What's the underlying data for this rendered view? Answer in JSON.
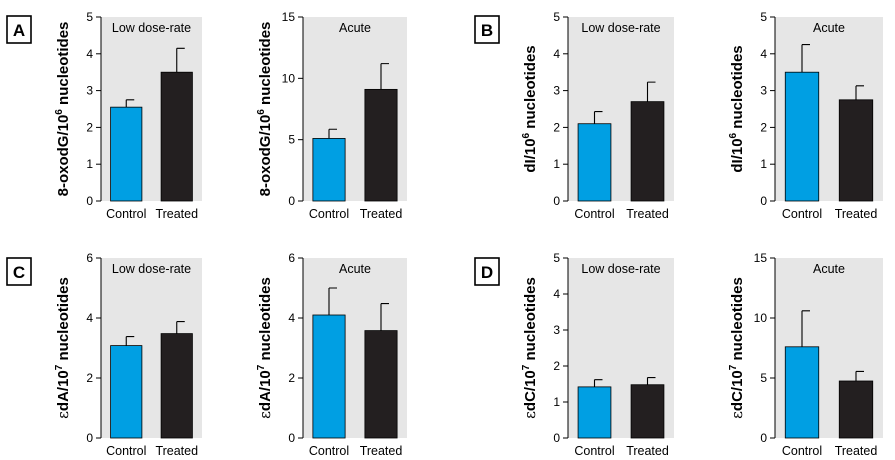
{
  "colors": {
    "control": "#009fe3",
    "treated": "#231f20",
    "plot_background": "#e6e6e6"
  },
  "panels": [
    {
      "letter": "A"
    },
    {
      "letter": "B"
    },
    {
      "letter": "C"
    },
    {
      "letter": "D"
    }
  ],
  "chart_data": [
    {
      "type": "bar",
      "panel": "A",
      "title": "Low dose-rate",
      "ylabel": {
        "main": "8-oxodG/10",
        "sup": "6",
        "rest": " nucleotides"
      },
      "categories": [
        "Control",
        "Treated"
      ],
      "values": [
        2.55,
        3.5
      ],
      "errors": [
        0.2,
        0.65
      ],
      "ylim": [
        0,
        5
      ],
      "yticks": [
        0,
        1,
        2,
        3,
        4,
        5
      ]
    },
    {
      "type": "bar",
      "panel": "A",
      "title": "Acute",
      "ylabel": {
        "main": "8-oxodG/10",
        "sup": "6",
        "rest": " nucleotides"
      },
      "categories": [
        "Control",
        "Treated"
      ],
      "values": [
        5.1,
        9.1
      ],
      "errors": [
        0.75,
        2.1
      ],
      "ylim": [
        0,
        15
      ],
      "yticks": [
        0,
        5,
        10,
        15
      ]
    },
    {
      "type": "bar",
      "panel": "B",
      "title": "Low dose-rate",
      "ylabel": {
        "main": "dI/10",
        "sup": "6",
        "rest": " nucleotides"
      },
      "categories": [
        "Control",
        "Treated"
      ],
      "values": [
        2.1,
        2.7
      ],
      "errors": [
        0.33,
        0.53
      ],
      "ylim": [
        0,
        5
      ],
      "yticks": [
        0,
        1,
        2,
        3,
        4,
        5
      ]
    },
    {
      "type": "bar",
      "panel": "B",
      "title": "Acute",
      "ylabel": {
        "main": "dI/10",
        "sup": "6",
        "rest": " nucleotides"
      },
      "categories": [
        "Control",
        "Treated"
      ],
      "values": [
        3.5,
        2.75
      ],
      "errors": [
        0.75,
        0.38
      ],
      "ylim": [
        0,
        5
      ],
      "yticks": [
        0,
        1,
        2,
        3,
        4,
        5
      ]
    },
    {
      "type": "bar",
      "panel": "C",
      "title": "Low dose-rate",
      "ylabel": {
        "eps": "ε",
        "main": "dA/10",
        "sup": "7",
        "rest": " nucleotides"
      },
      "categories": [
        "Control",
        "Treated"
      ],
      "values": [
        3.08,
        3.48
      ],
      "errors": [
        0.3,
        0.4
      ],
      "ylim": [
        0,
        6
      ],
      "yticks": [
        0,
        2,
        4,
        6
      ]
    },
    {
      "type": "bar",
      "panel": "C",
      "title": "Acute",
      "ylabel": {
        "eps": "ε",
        "main": "dA/10",
        "sup": "7",
        "rest": " nucleotides"
      },
      "categories": [
        "Control",
        "Treated"
      ],
      "values": [
        4.1,
        3.58
      ],
      "errors": [
        0.9,
        0.9
      ],
      "ylim": [
        0,
        6
      ],
      "yticks": [
        0,
        2,
        4,
        6
      ]
    },
    {
      "type": "bar",
      "panel": "D",
      "title": "Low dose-rate",
      "ylabel": {
        "eps": "ε",
        "main": "dC/10",
        "sup": "7",
        "rest": " nucleotides"
      },
      "categories": [
        "Control",
        "Treated"
      ],
      "values": [
        1.42,
        1.48
      ],
      "errors": [
        0.2,
        0.2
      ],
      "ylim": [
        0,
        5
      ],
      "yticks": [
        0,
        1,
        2,
        3,
        4,
        5
      ]
    },
    {
      "type": "bar",
      "panel": "D",
      "title": "Acute",
      "ylabel": {
        "eps": "ε",
        "main": "dC/10",
        "sup": "7",
        "rest": " nucleotides"
      },
      "categories": [
        "Control",
        "Treated"
      ],
      "values": [
        7.6,
        4.75
      ],
      "errors": [
        3.0,
        0.8
      ],
      "ylim": [
        0,
        15
      ],
      "yticks": [
        0,
        5,
        10,
        15
      ]
    }
  ]
}
